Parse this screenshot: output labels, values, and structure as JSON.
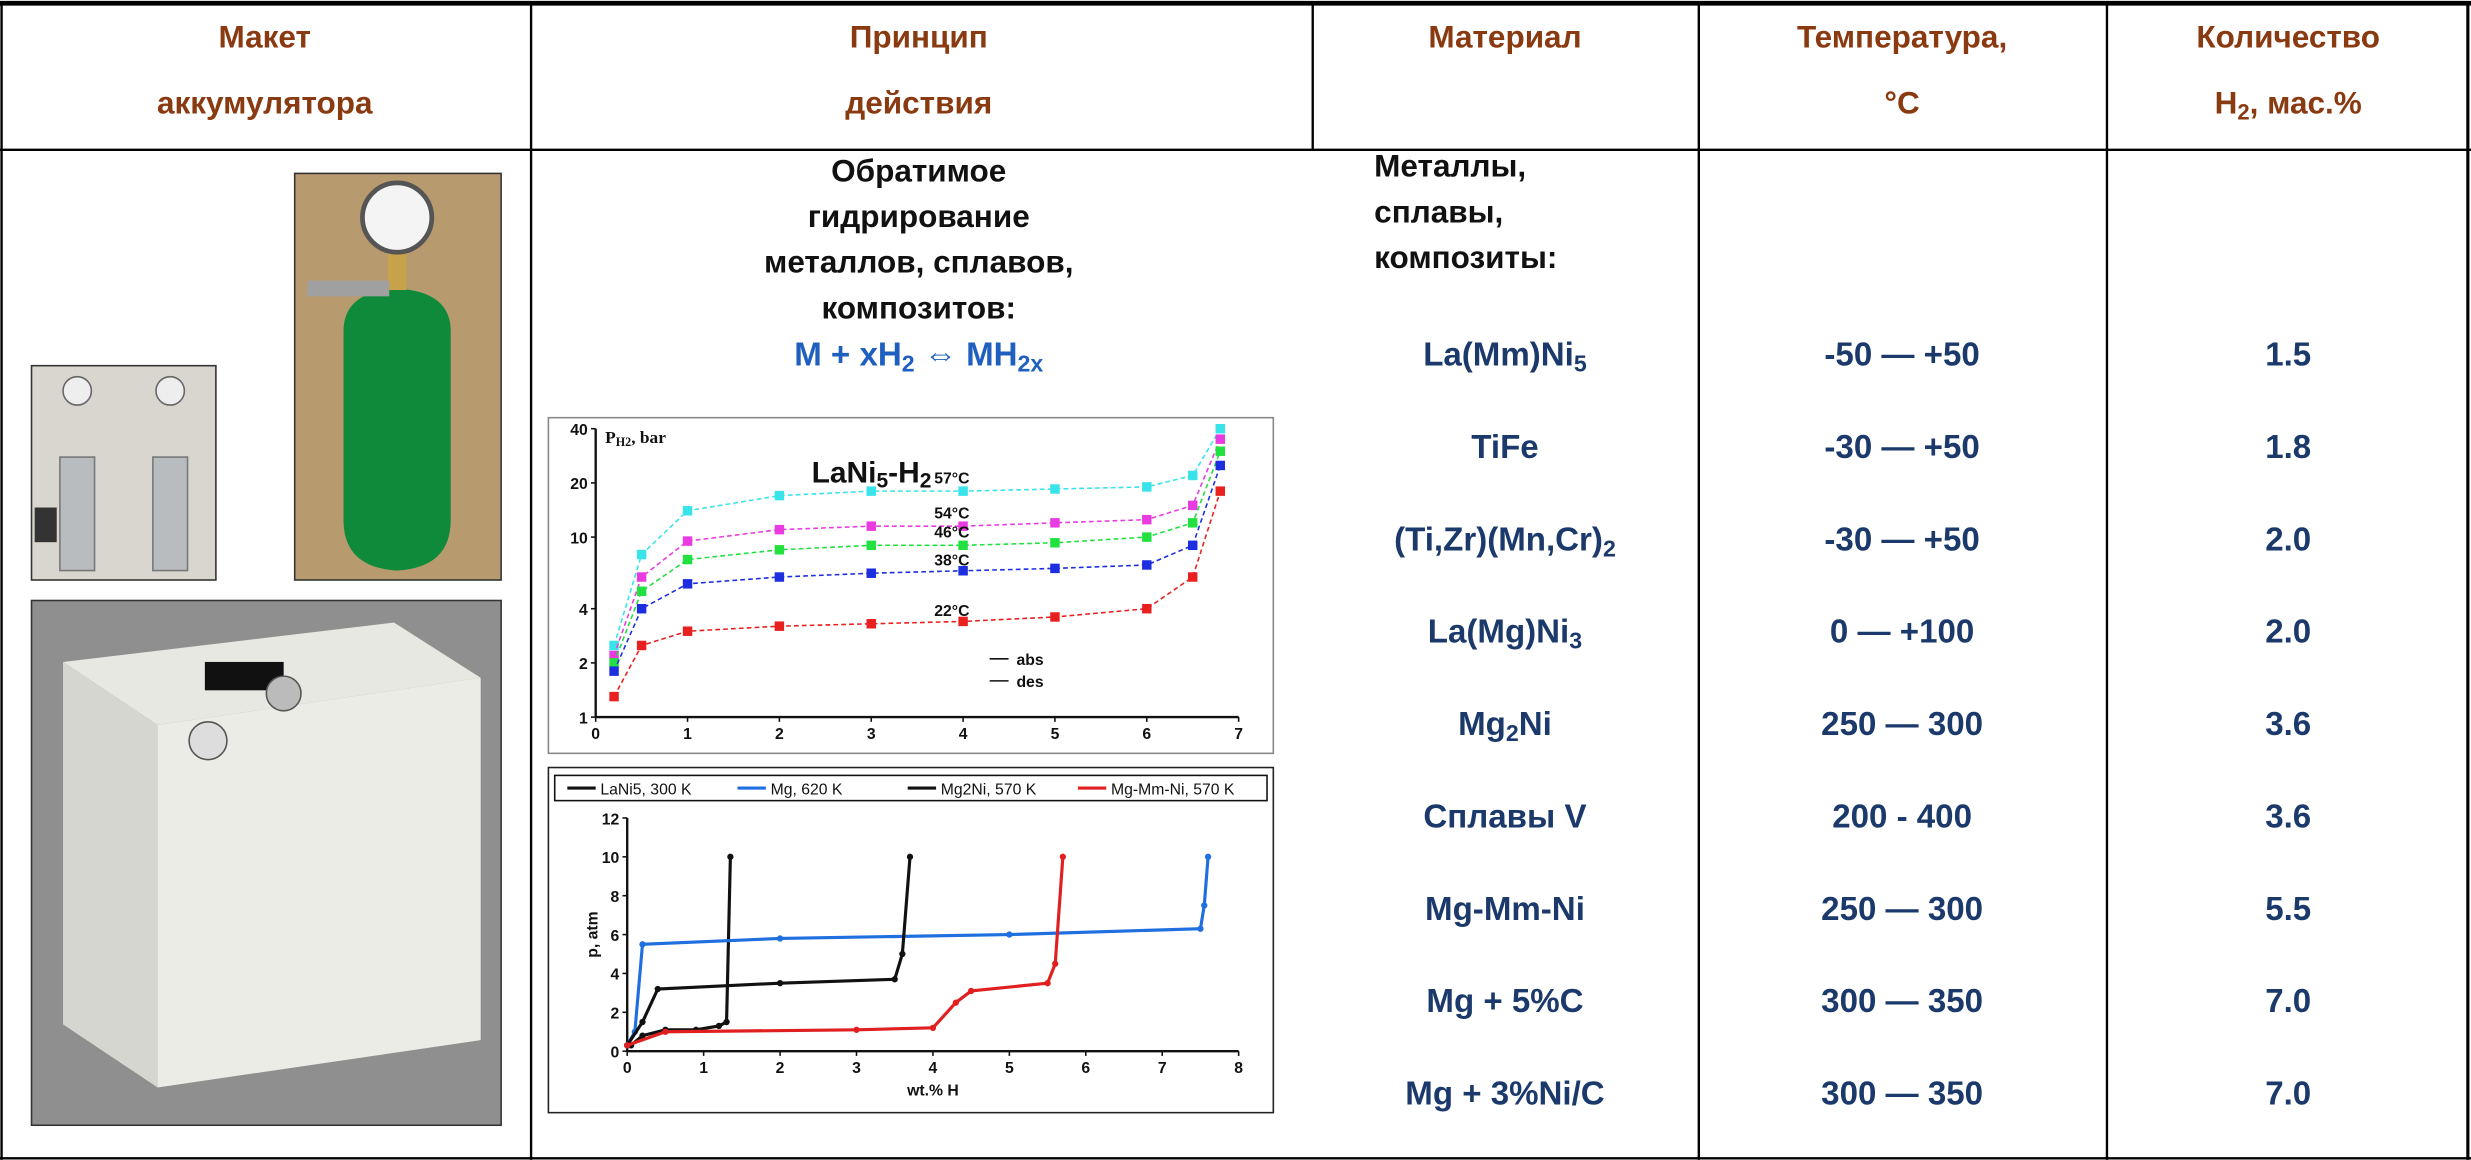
{
  "header": [
    [
      [
        "Макет"
      ],
      [
        "аккумулятора"
      ]
    ],
    [
      [
        "Принцип"
      ],
      [
        "действия"
      ]
    ],
    [
      [
        "Материал"
      ]
    ],
    [
      [
        "Температура,"
      ],
      [
        "°C"
      ]
    ],
    [
      [
        "Количество"
      ],
      [
        "H",
        "2",
        ", мас.%"
      ]
    ]
  ],
  "principle": {
    "lines": [
      "Обратимое",
      "гидрирование",
      "металлов, сплавов,",
      "композитов:"
    ],
    "formula": [
      "M + xH",
      "2",
      " ⇔ MH",
      "2x"
    ]
  },
  "materials_intro": [
    "Металлы,",
    "сплавы,",
    "композиты:"
  ],
  "rows": [
    {
      "material": [
        "La(Mm)Ni",
        "5"
      ],
      "temperature": "-50 — +50",
      "amount": "1.5"
    },
    {
      "material": [
        "TiFe"
      ],
      "temperature": "-30 — +50",
      "amount": "1.8"
    },
    {
      "material": [
        "(Ti,Zr)(Mn,Cr)",
        "2"
      ],
      "temperature": "-30 — +50",
      "amount": "2.0"
    },
    {
      "material": [
        "La(Mg)Ni",
        "3"
      ],
      "temperature": "0 — +100",
      "amount": "2.0"
    },
    {
      "material": [
        "Mg",
        "2",
        "Ni"
      ],
      "temperature": "250 — 300",
      "amount": "3.6"
    },
    {
      "material": [
        "Сплавы V"
      ],
      "temperature": "200 - 400",
      "amount": "3.6"
    },
    {
      "material": [
        "Mg-Mm-Ni"
      ],
      "temperature": "250 — 300",
      "amount": "5.5"
    },
    {
      "material": [
        "Mg + 5%C"
      ],
      "temperature": "300 — 350",
      "amount": "7.0"
    },
    {
      "material": [
        "Mg + 3%Ni/C"
      ],
      "temperature": "300 — 350",
      "amount": "7.0"
    }
  ],
  "plot1": {
    "type": "line",
    "title": [
      "LaNi",
      "5",
      "-H",
      "2"
    ],
    "y_label": [
      "P",
      "H2",
      ", bar"
    ],
    "log_y": true,
    "xlim": [
      0,
      7
    ],
    "xticks": [
      0,
      1,
      2,
      3,
      4,
      5,
      6,
      7
    ],
    "ylim": [
      1,
      40
    ],
    "yticks": [
      1,
      2,
      4,
      10,
      20,
      40
    ],
    "x": [
      0.2,
      0.5,
      1,
      2,
      3,
      4,
      5,
      6,
      6.5,
      6.8
    ],
    "series": [
      {
        "name": "57°C",
        "color": "#38e3ea",
        "values": [
          2.5,
          8,
          14,
          17,
          18,
          18,
          18.5,
          19,
          22,
          40
        ]
      },
      {
        "name": "54°C",
        "color": "#e83ce0",
        "values": [
          2.2,
          6,
          9.5,
          11,
          11.5,
          11.5,
          12,
          12.5,
          15,
          35
        ]
      },
      {
        "name": "46°C",
        "color": "#22e040",
        "values": [
          2,
          5,
          7.5,
          8.5,
          9,
          9,
          9.3,
          10,
          12,
          30
        ]
      },
      {
        "name": "38°C",
        "color": "#1c2ee0",
        "values": [
          1.8,
          4,
          5.5,
          6,
          6.3,
          6.5,
          6.7,
          7,
          9,
          25
        ]
      },
      {
        "name": "22°C",
        "color": "#e82020",
        "values": [
          1.3,
          2.5,
          3,
          3.2,
          3.3,
          3.4,
          3.6,
          4,
          6,
          18
        ]
      }
    ],
    "annotations": [
      "abs",
      "des"
    ]
  },
  "plot2": {
    "type": "line",
    "x_label": "wt.% H",
    "y_label": "p, atm",
    "xlim": [
      0,
      8
    ],
    "xticks": [
      0,
      1,
      2,
      3,
      4,
      5,
      6,
      7,
      8
    ],
    "ylim": [
      0,
      12
    ],
    "yticks": [
      0,
      2,
      4,
      6,
      8,
      10,
      12
    ],
    "series": [
      {
        "name": "LaNi5, 300 K",
        "color": "#111111",
        "x": [
          0.05,
          0.2,
          0.5,
          0.9,
          1.2,
          1.3,
          1.35
        ],
        "y": [
          0.3,
          0.8,
          1.1,
          1.1,
          1.3,
          1.5,
          10
        ]
      },
      {
        "name": "Mg, 620 K",
        "color": "#1f6fe0",
        "x": [
          0,
          0.1,
          0.2,
          2,
          5,
          7.5,
          7.55,
          7.6
        ],
        "y": [
          0.3,
          1,
          5.5,
          5.8,
          6,
          6.3,
          7.5,
          10
        ]
      },
      {
        "name": "Mg2Ni, 570 K",
        "color": "#111111",
        "x": [
          0,
          0.2,
          0.4,
          2,
          3.5,
          3.6,
          3.7
        ],
        "y": [
          0.3,
          1.5,
          3.2,
          3.5,
          3.7,
          5,
          10
        ]
      },
      {
        "name": "Mg-Mm-Ni, 570 K",
        "color": "#e02020",
        "x": [
          0,
          0.5,
          3,
          4,
          4.3,
          4.5,
          5.5,
          5.6,
          5.7
        ],
        "y": [
          0.3,
          1,
          1.1,
          1.2,
          2.5,
          3.1,
          3.5,
          4.5,
          10
        ]
      }
    ]
  }
}
